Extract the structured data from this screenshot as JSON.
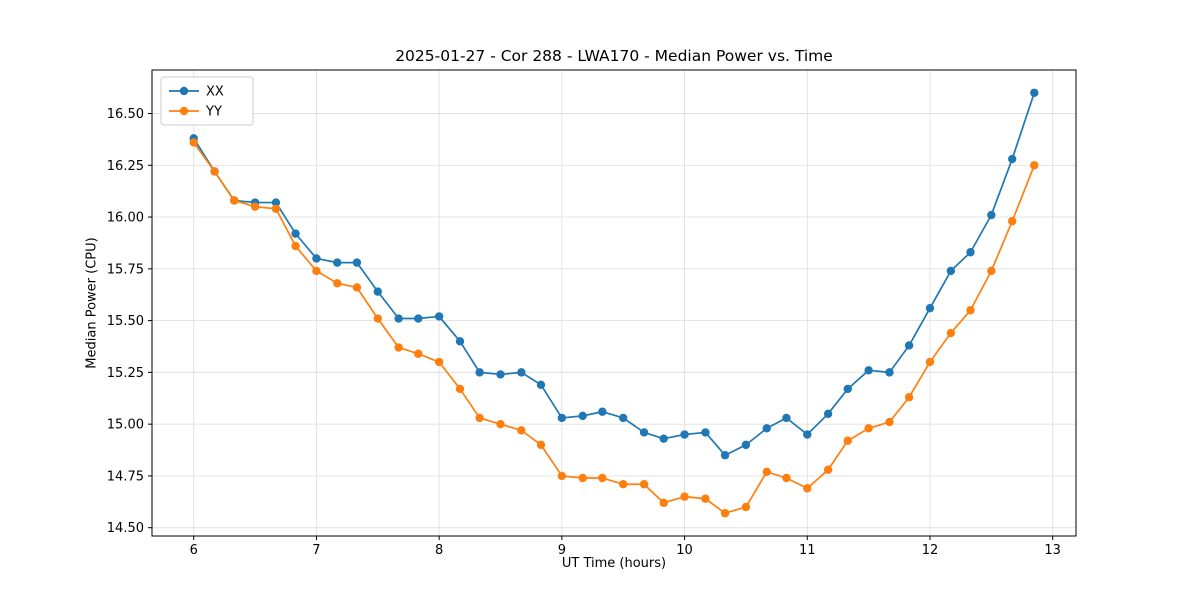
{
  "page": {
    "background": "#ffffff"
  },
  "chart_data": {
    "type": "line",
    "title": "2025-01-27 - Cor 288 - LWA170 - Median Power vs. Time",
    "xlabel": "UT Time (hours)",
    "ylabel": "Median Power (CPU)",
    "xlim": [
      5.66,
      13.19
    ],
    "ylim": [
      14.46,
      16.71
    ],
    "xticks": [
      6,
      7,
      8,
      9,
      10,
      11,
      12,
      13
    ],
    "yticks": [
      14.5,
      14.75,
      15.0,
      15.25,
      15.5,
      15.75,
      16.0,
      16.25,
      16.5
    ],
    "grid": true,
    "legend_position": "upper left",
    "x": [
      6.0,
      6.17,
      6.33,
      6.5,
      6.67,
      6.83,
      7.0,
      7.17,
      7.33,
      7.5,
      7.67,
      7.83,
      8.0,
      8.17,
      8.33,
      8.5,
      8.67,
      8.83,
      9.0,
      9.17,
      9.33,
      9.5,
      9.67,
      9.83,
      10.0,
      10.17,
      10.33,
      10.5,
      10.67,
      10.83,
      11.0,
      11.17,
      11.33,
      11.5,
      11.67,
      11.83,
      12.0,
      12.17,
      12.33,
      12.5,
      12.67,
      12.85
    ],
    "series": [
      {
        "name": "XX",
        "color": "#1f77b4",
        "values": [
          16.38,
          16.22,
          16.08,
          16.07,
          16.07,
          15.92,
          15.8,
          15.78,
          15.78,
          15.64,
          15.51,
          15.51,
          15.52,
          15.4,
          15.25,
          15.24,
          15.25,
          15.19,
          15.03,
          15.04,
          15.06,
          15.03,
          14.96,
          14.93,
          14.95,
          14.96,
          14.85,
          14.9,
          14.98,
          15.03,
          14.95,
          15.05,
          15.17,
          15.26,
          15.25,
          15.38,
          15.56,
          15.74,
          15.83,
          16.01,
          16.28,
          16.6
        ]
      },
      {
        "name": "YY",
        "color": "#ff7f0e",
        "values": [
          16.36,
          16.22,
          16.08,
          16.05,
          16.04,
          15.86,
          15.74,
          15.68,
          15.66,
          15.51,
          15.37,
          15.34,
          15.3,
          15.17,
          15.03,
          15.0,
          14.97,
          14.9,
          14.75,
          14.74,
          14.74,
          14.71,
          14.71,
          14.62,
          14.65,
          14.64,
          14.57,
          14.6,
          14.77,
          14.74,
          14.69,
          14.78,
          14.92,
          14.98,
          15.01,
          15.13,
          15.3,
          15.44,
          15.55,
          15.74,
          15.98,
          16.25
        ]
      }
    ],
    "style": {
      "grid_color": "#e0e0e0",
      "spine_color": "#000000",
      "tick_color": "#000000",
      "legend_border": "#cccccc",
      "marker_radius": 4.2,
      "line_width": 1.7
    }
  }
}
